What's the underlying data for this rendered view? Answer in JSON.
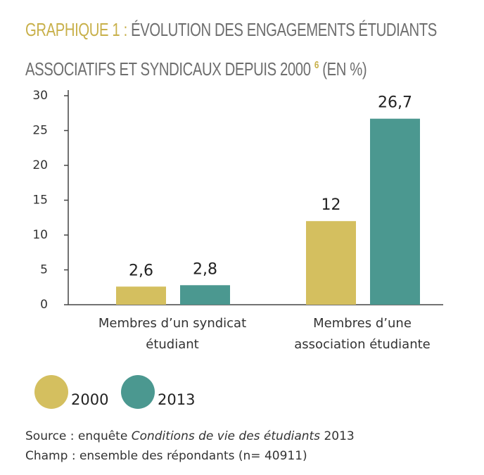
{
  "title_label": "GRAPHIQUE 1 :",
  "footnote_ref": "6",
  "unit": "(EN %)",
  "source": {
    "prefix": "Source : enquête",
    "title": "Conditions de vie des étudiants",
    "suffix": "2013"
  },
  "scope": "Champ : ensemble des répondants (n= 40911)",
  "chart_data": {
    "type": "bar",
    "title": "ÉVOLUTION DES ENGAGEMENTS ÉTUDIANTS ASSOCIATIFS ET SYNDICAUX DEPUIS 2000",
    "categories": [
      "Membres d’un syndicat étudiant",
      "Membres d’une association étudiante"
    ],
    "series": [
      {
        "name": "2000",
        "color": "#d4bf5f",
        "values": [
          2.6,
          12
        ],
        "value_labels": [
          "2,6",
          "12"
        ]
      },
      {
        "name": "2013",
        "color": "#4b9890",
        "values": [
          2.8,
          26.7
        ],
        "value_labels": [
          "2,8",
          "26,7"
        ]
      }
    ],
    "ylim": [
      0,
      30
    ],
    "yticks": [
      0,
      5,
      10,
      15,
      20,
      25,
      30
    ],
    "grid": false
  }
}
